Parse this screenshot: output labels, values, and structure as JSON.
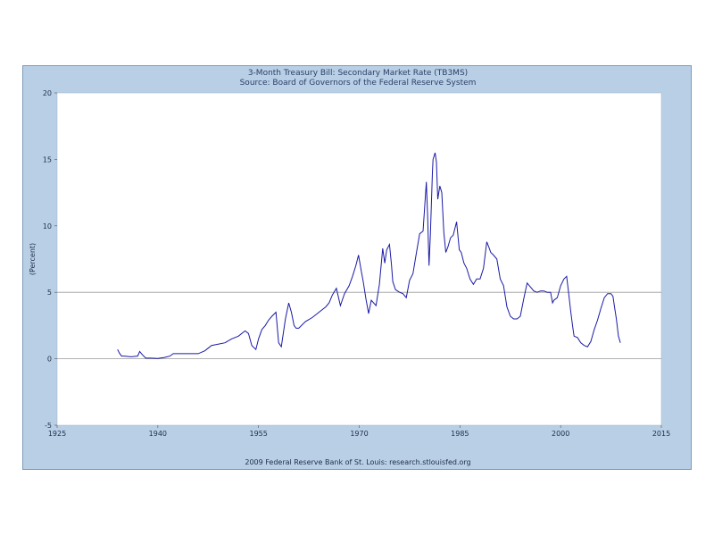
{
  "chart_data": {
    "type": "line",
    "title": "3-Month Treasury Bill: Secondary Market Rate (TB3MS)",
    "subtitle": "Source: Board of Governors of the Federal Reserve System",
    "ylabel": "(Percent)",
    "xlabel": "",
    "footer": "2009 Federal Reserve Bank of St. Louis: research.stlouisfed.org",
    "xlim": [
      1925,
      2015
    ],
    "ylim": [
      -5,
      20
    ],
    "xticks": [
      1925,
      1940,
      1955,
      1970,
      1985,
      2000,
      2015
    ],
    "yticks": [
      -5,
      0,
      5,
      10,
      15,
      20
    ],
    "gridlines_y": [
      0,
      5
    ],
    "line_color": "#1a1aa6",
    "plot_background": "#ffffff",
    "frame_color": "#b8cfe6",
    "series": [
      {
        "x": [
          1934.0,
          1934.3,
          1934.6,
          1935.0,
          1936.0,
          1937.0,
          1937.3,
          1937.7,
          1938.2,
          1939.0,
          1940.0,
          1941.0,
          1941.8,
          1942.3,
          1943.0,
          1944.0,
          1945.0,
          1946.0,
          1947.0,
          1947.5,
          1948.0,
          1949.0,
          1950.0,
          1951.0,
          1952.0,
          1953.0,
          1953.5,
          1954.0,
          1954.6,
          1955.0,
          1955.5,
          1956.0,
          1956.5,
          1957.0,
          1957.6,
          1958.0,
          1958.4,
          1959.0,
          1959.5,
          1959.9,
          1960.3,
          1960.6,
          1961.0,
          1962.0,
          1963.0,
          1964.0,
          1965.0,
          1965.5,
          1966.0,
          1966.6,
          1967.2,
          1967.8,
          1968.5,
          1969.0,
          1969.5,
          1969.9,
          1970.3,
          1970.6,
          1971.0,
          1971.4,
          1971.8,
          1972.5,
          1973.0,
          1973.5,
          1973.8,
          1974.1,
          1974.5,
          1974.8,
          1975.0,
          1975.4,
          1976.0,
          1976.5,
          1977.0,
          1977.5,
          1978.0,
          1978.5,
          1979.0,
          1979.5,
          1980.0,
          1980.2,
          1980.4,
          1980.6,
          1980.9,
          1981.0,
          1981.3,
          1981.5,
          1981.7,
          1982.0,
          1982.3,
          1982.6,
          1982.9,
          1983.2,
          1983.6,
          1984.0,
          1984.5,
          1984.9,
          1985.2,
          1985.6,
          1986.0,
          1986.5,
          1987.0,
          1987.5,
          1988.0,
          1988.5,
          1989.0,
          1989.3,
          1989.6,
          1990.0,
          1990.5,
          1991.0,
          1991.5,
          1992.0,
          1992.5,
          1993.0,
          1993.5,
          1994.0,
          1994.5,
          1995.0,
          1995.5,
          1996.0,
          1996.5,
          1997.0,
          1997.5,
          1998.0,
          1998.5,
          1998.8,
          1999.0,
          1999.5,
          2000.0,
          2000.5,
          2000.9,
          2001.2,
          2001.5,
          2001.8,
          2002.0,
          2002.5,
          2003.0,
          2003.5,
          2004.0,
          2004.5,
          2005.0,
          2005.5,
          2006.0,
          2006.5,
          2007.0,
          2007.5,
          2007.8,
          2008.0,
          2008.3,
          2008.6,
          2008.9
        ],
        "y": [
          0.7,
          0.4,
          0.2,
          0.2,
          0.15,
          0.2,
          0.55,
          0.3,
          0.05,
          0.05,
          0.02,
          0.1,
          0.2,
          0.38,
          0.38,
          0.38,
          0.38,
          0.38,
          0.6,
          0.8,
          1.0,
          1.1,
          1.2,
          1.5,
          1.7,
          2.1,
          1.9,
          1.0,
          0.7,
          1.5,
          2.2,
          2.5,
          2.9,
          3.2,
          3.5,
          1.2,
          0.9,
          3.0,
          4.2,
          3.5,
          2.5,
          2.3,
          2.3,
          2.8,
          3.1,
          3.5,
          3.9,
          4.2,
          4.8,
          5.3,
          4.0,
          4.9,
          5.5,
          6.2,
          7.0,
          7.8,
          6.6,
          5.8,
          4.5,
          3.4,
          4.4,
          4.0,
          5.6,
          8.3,
          7.2,
          8.2,
          8.6,
          7.1,
          5.8,
          5.2,
          5.0,
          4.9,
          4.6,
          5.9,
          6.4,
          7.9,
          9.4,
          9.6,
          13.3,
          10.6,
          7.0,
          9.3,
          14.0,
          15.0,
          15.5,
          14.8,
          12.0,
          13.0,
          12.5,
          9.5,
          8.0,
          8.4,
          9.1,
          9.3,
          10.3,
          8.2,
          8.0,
          7.2,
          6.8,
          6.0,
          5.6,
          6.0,
          6.0,
          6.8,
          8.8,
          8.4,
          8.0,
          7.8,
          7.5,
          6.0,
          5.5,
          3.9,
          3.2,
          3.0,
          3.0,
          3.2,
          4.5,
          5.7,
          5.4,
          5.1,
          5.0,
          5.1,
          5.1,
          5.0,
          5.0,
          4.2,
          4.4,
          4.6,
          5.5,
          6.0,
          6.2,
          4.9,
          3.6,
          2.4,
          1.7,
          1.6,
          1.2,
          1.0,
          0.9,
          1.3,
          2.2,
          2.9,
          3.8,
          4.6,
          4.9,
          4.9,
          4.7,
          4.0,
          3.0,
          1.7,
          1.2
        ]
      }
    ]
  }
}
